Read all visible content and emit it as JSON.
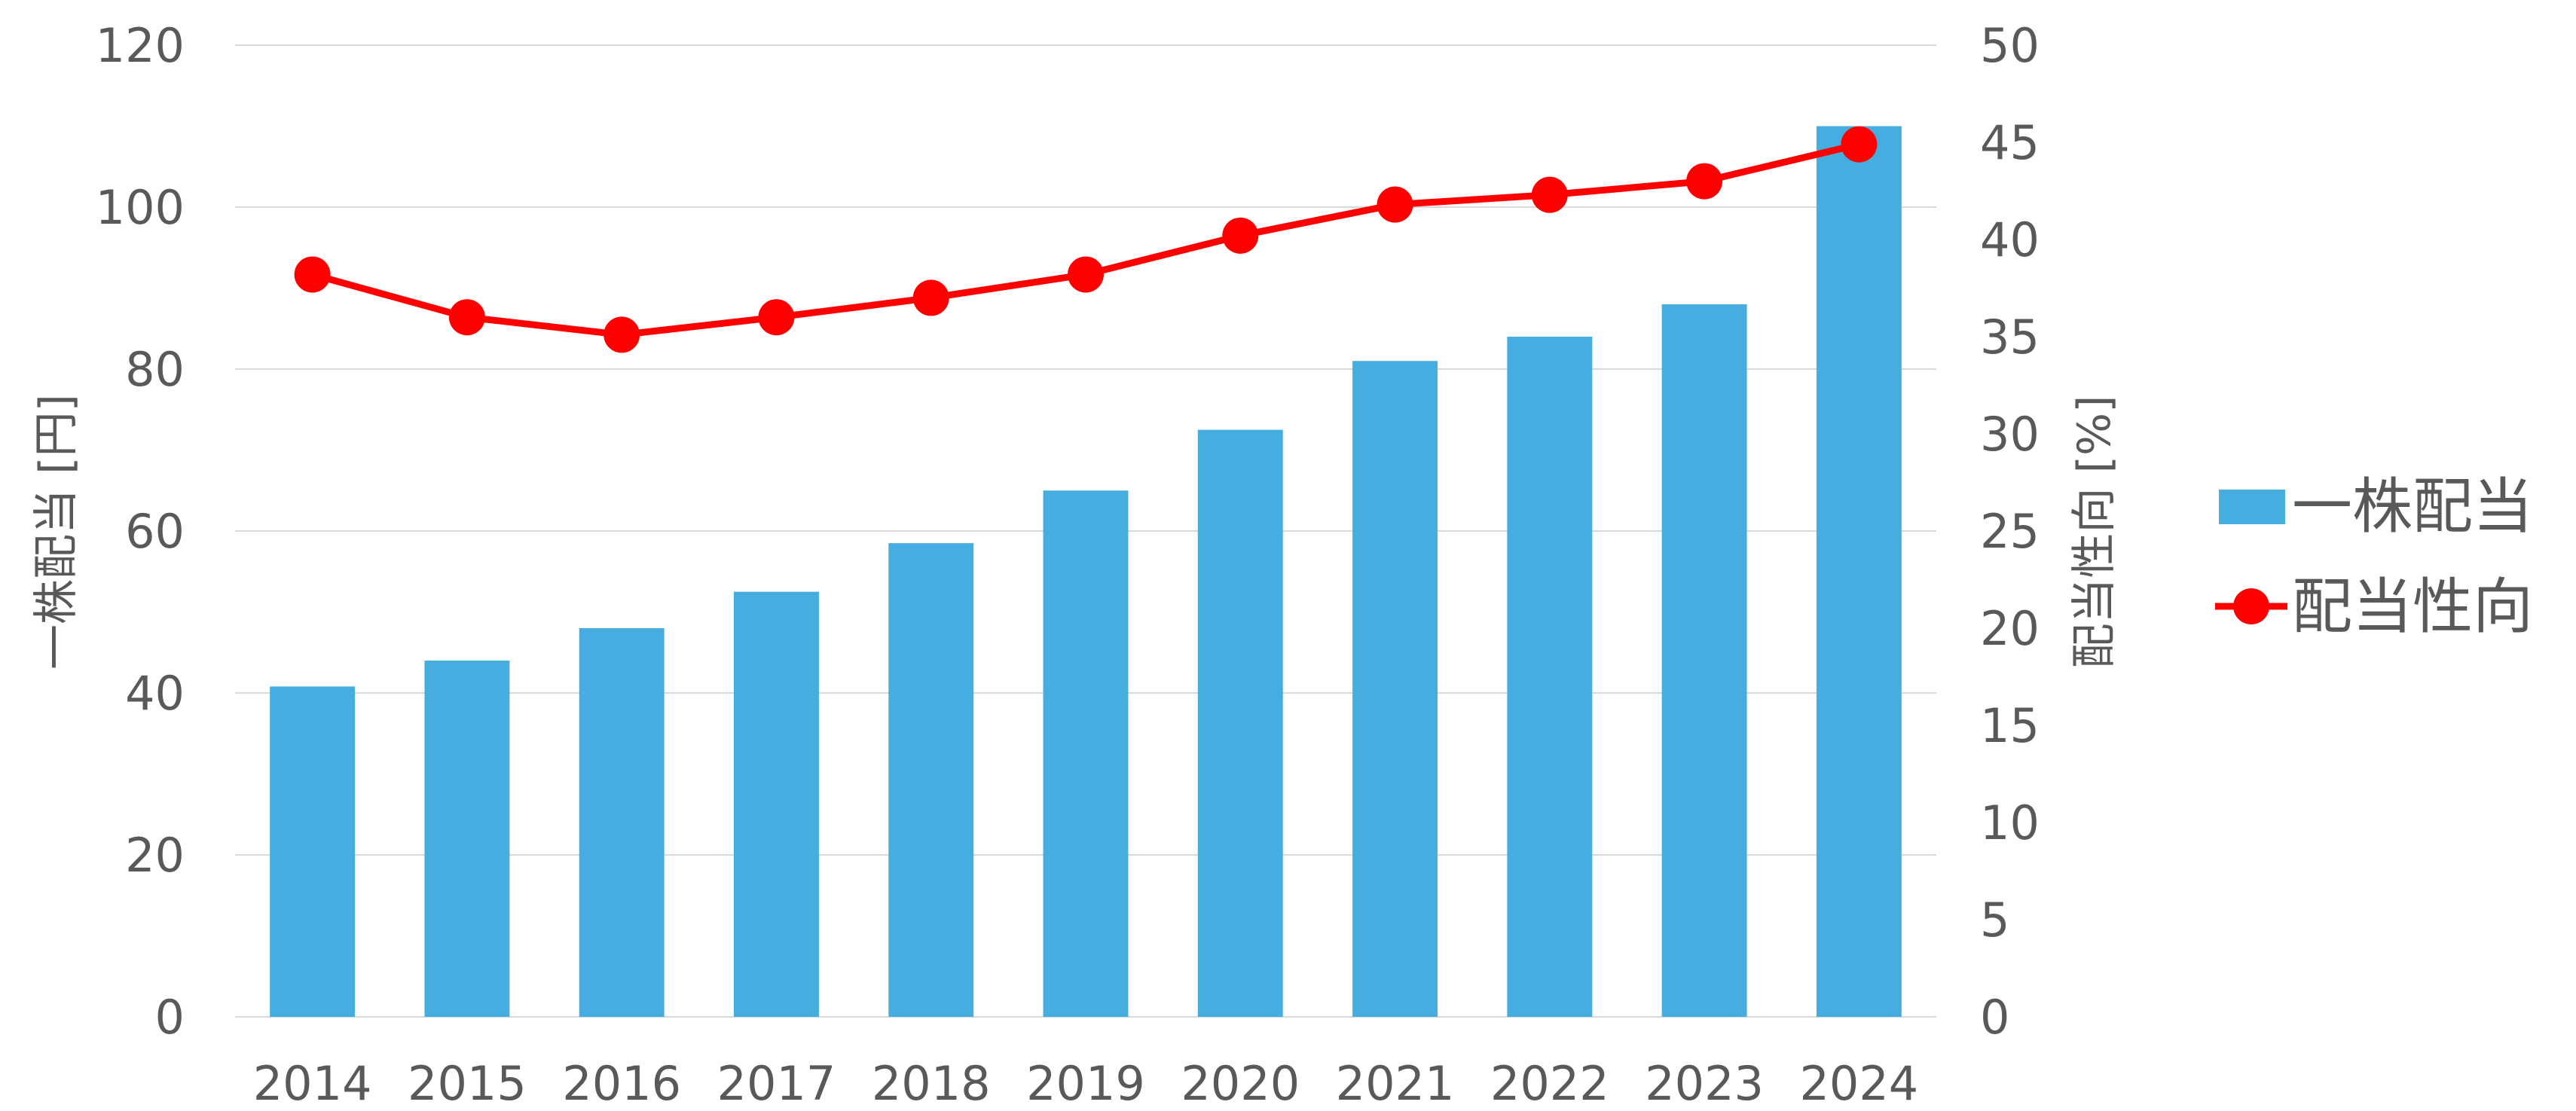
{
  "chart_data": {
    "type": "bar",
    "categories": [
      "2014",
      "2015",
      "2016",
      "2017",
      "2018",
      "2019",
      "2020",
      "2021",
      "2022",
      "2023",
      "2024"
    ],
    "series": [
      {
        "name": "一株配当",
        "type": "bar",
        "axis": "left",
        "color": "#45ADE0",
        "values": [
          40.8,
          44,
          48,
          52.5,
          58.5,
          65,
          72.5,
          81,
          84,
          88,
          110
        ]
      },
      {
        "name": "配当性向",
        "type": "line",
        "axis": "right",
        "color": "#FF0000",
        "values": [
          38.2,
          36,
          35.1,
          36,
          37,
          38.2,
          40.2,
          41.8,
          42.3,
          43,
          44.9
        ]
      }
    ],
    "y_left": {
      "label": "一株配当 [円]",
      "range": [
        0,
        120
      ],
      "ticks": [
        "0",
        "20",
        "40",
        "60",
        "80",
        "100",
        "120"
      ]
    },
    "y_right": {
      "label": "配当性向 [%]",
      "range": [
        0,
        50
      ],
      "ticks": [
        "0",
        "5",
        "10",
        "15",
        "20",
        "25",
        "30",
        "35",
        "40",
        "45",
        "50"
      ]
    },
    "grid": true,
    "legend_position": "right"
  }
}
